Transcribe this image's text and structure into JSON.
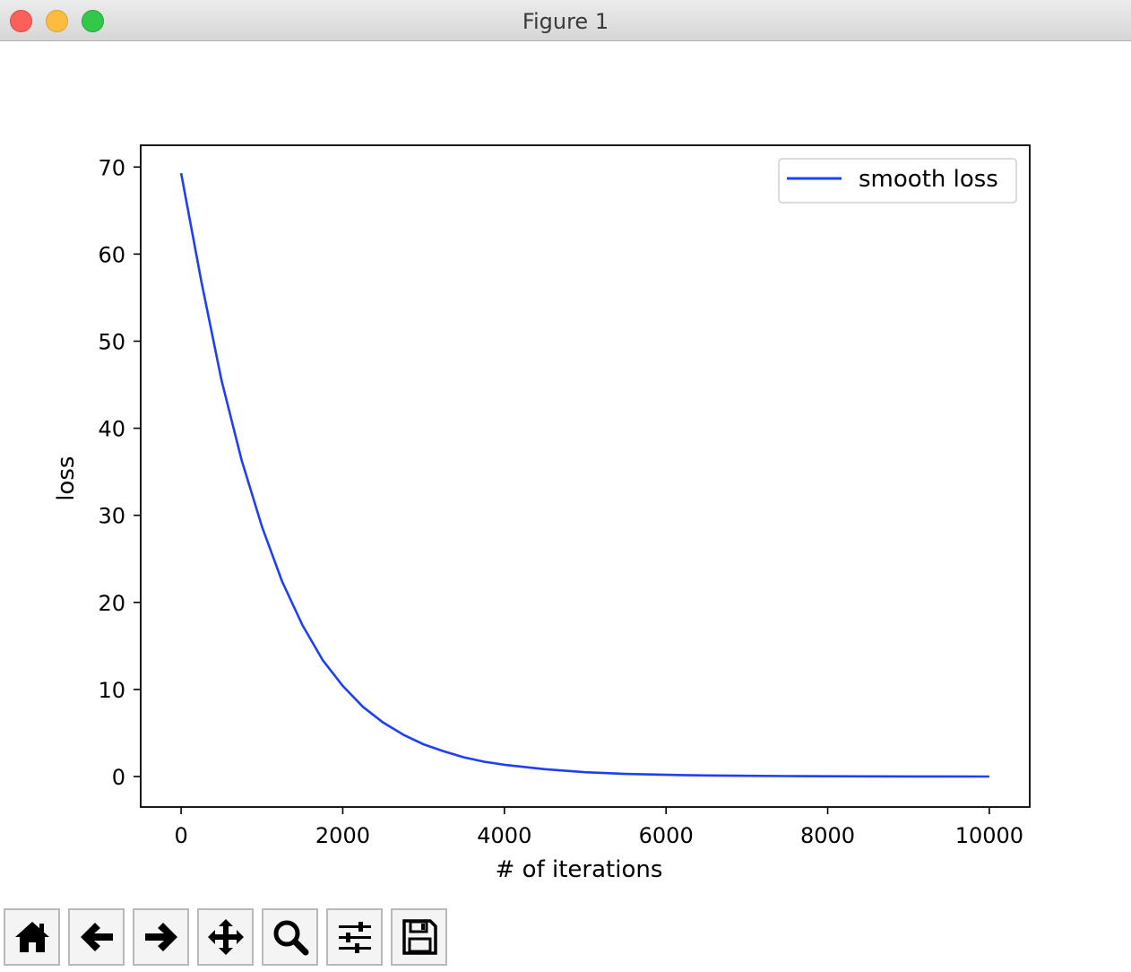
{
  "window": {
    "title": "Figure 1"
  },
  "toolbar": {
    "items": [
      {
        "name": "home-icon"
      },
      {
        "name": "back-icon"
      },
      {
        "name": "forward-icon"
      },
      {
        "name": "pan-icon"
      },
      {
        "name": "zoom-icon"
      },
      {
        "name": "configure-subplots-icon"
      },
      {
        "name": "save-icon"
      }
    ]
  },
  "chart_data": {
    "type": "line",
    "title": "",
    "xlabel": "# of iterations",
    "ylabel": "loss",
    "xlim": [
      -500,
      10500
    ],
    "ylim": [
      -3.5,
      72.5
    ],
    "xticks": [
      0,
      2000,
      4000,
      6000,
      8000,
      10000
    ],
    "yticks": [
      0,
      10,
      20,
      30,
      40,
      50,
      60,
      70
    ],
    "xtick_labels": [
      "0",
      "2000",
      "4000",
      "6000",
      "8000",
      "10000"
    ],
    "ytick_labels": [
      "0",
      "10",
      "20",
      "30",
      "40",
      "50",
      "60",
      "70"
    ],
    "grid": false,
    "legend": {
      "position": "top-right",
      "entries": [
        "smooth loss"
      ]
    },
    "series": [
      {
        "name": "smooth loss",
        "color": "#1f3ff5",
        "x": [
          0,
          250,
          500,
          750,
          1000,
          1250,
          1500,
          1750,
          2000,
          2250,
          2500,
          2750,
          3000,
          3250,
          3500,
          3750,
          4000,
          4500,
          5000,
          5500,
          6000,
          6500,
          7000,
          7500,
          8000,
          8500,
          9000,
          9500,
          10000
        ],
        "y": [
          69.3,
          56.9,
          45.5,
          36.3,
          28.7,
          22.4,
          17.4,
          13.4,
          10.4,
          8.0,
          6.2,
          4.8,
          3.7,
          2.9,
          2.2,
          1.7,
          1.35,
          0.85,
          0.5,
          0.3,
          0.2,
          0.13,
          0.08,
          0.05,
          0.03,
          0.02,
          0.01,
          0.01,
          0.0
        ]
      }
    ]
  }
}
